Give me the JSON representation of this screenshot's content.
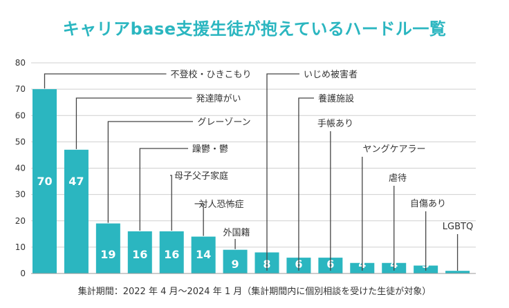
{
  "title": "キャリアbase支援生徒が抱えているハードル一覧",
  "footnote": "集計期間：2022 年 4 月～2024 年 1 月（集計期間内に個別相談を受けた生徒が対象）",
  "colors": {
    "accent": "#2bb6c0",
    "grid": "#cfcfcf",
    "text": "#333333",
    "value_text": "#ffffff"
  },
  "chart_data": {
    "type": "bar",
    "title": "キャリアbase支援生徒が抱えているハードル一覧",
    "xlabel": "",
    "ylabel": "",
    "ylim": [
      0,
      80
    ],
    "yticks": [
      0,
      10,
      20,
      30,
      40,
      50,
      60,
      70,
      80
    ],
    "grid": true,
    "categories": [
      "不登校・ひきこもり",
      "発達障がい",
      "グレーゾーン",
      "躁鬱・鬱",
      "母子父子家庭",
      "対人恐怖症",
      "外国籍",
      "いじめ被害者",
      "養護施設",
      "手帳あり",
      "ヤングケアラー",
      "虐待",
      "自傷あり",
      "LGBTQ"
    ],
    "values": [
      70,
      47,
      19,
      16,
      16,
      14,
      9,
      8,
      6,
      6,
      4,
      4,
      3,
      1
    ]
  }
}
